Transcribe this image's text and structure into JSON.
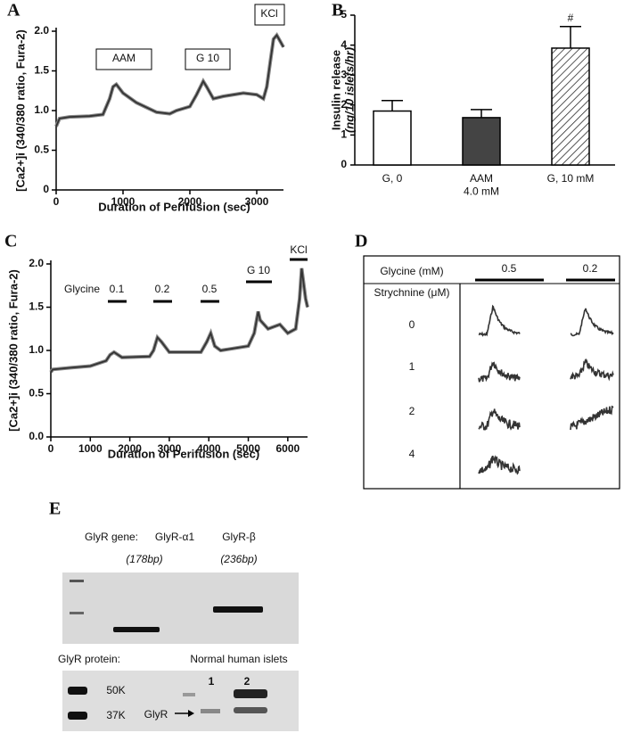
{
  "chart_data": [
    {
      "panel": "A",
      "type": "line",
      "color": "#333333",
      "x": [
        0,
        50,
        200,
        500,
        700,
        800,
        850,
        900,
        1000,
        1200,
        1500,
        1700,
        1800,
        2000,
        2100,
        2200,
        2250,
        2350,
        2500,
        2800,
        3000,
        3100,
        3150,
        3200,
        3250,
        3300,
        3400
      ],
      "values": [
        0.8,
        0.9,
        0.92,
        0.93,
        0.95,
        1.15,
        1.3,
        1.33,
        1.22,
        1.1,
        0.98,
        0.96,
        1.0,
        1.05,
        1.2,
        1.37,
        1.3,
        1.15,
        1.18,
        1.22,
        1.2,
        1.15,
        1.3,
        1.6,
        1.9,
        1.95,
        1.8
      ],
      "xlabel": "Duration of Perifusion (sec)",
      "ylabel": "[Ca2+]i (340/380 ratio, Fura-2)",
      "xlim": [
        0,
        3400
      ],
      "ylim": [
        0,
        2
      ],
      "xticks": [
        0,
        1000,
        2000,
        3000
      ],
      "yticks": [
        0,
        0.5,
        {
          "value": 1,
          "label": "1.0"
        },
        1.5,
        {
          "value": 2,
          "label": "2.0"
        }
      ],
      "annotations": [
        "AAM",
        "G 10",
        "KCl"
      ]
    },
    {
      "panel": "B",
      "type": "bar",
      "categories": [
        "G, 0",
        "AAM\n4.0 mM",
        "G, 10 mM"
      ],
      "values": [
        1.8,
        1.58,
        3.9
      ],
      "errors": [
        0.35,
        0.27,
        0.72
      ],
      "colors": [
        "#ffffff",
        "#444444",
        "#ffffff"
      ],
      "hatch": [
        false,
        false,
        true
      ],
      "ylabel": "Insulin release",
      "ylabel_unit": "(ng/10 islets/hr)",
      "ylim": [
        0,
        5
      ],
      "yticks": [
        0,
        1,
        2,
        3,
        4,
        5
      ],
      "annotations": [
        "#"
      ]
    },
    {
      "panel": "C",
      "type": "line",
      "color": "#333333",
      "x": [
        0,
        50,
        500,
        1000,
        1400,
        1500,
        1600,
        1800,
        2500,
        2600,
        2700,
        2800,
        3000,
        3800,
        3950,
        4050,
        4150,
        4300,
        5000,
        5150,
        5250,
        5300,
        5500,
        5800,
        6000,
        6200,
        6300,
        6350,
        6450,
        6500
      ],
      "values": [
        0.75,
        0.78,
        0.8,
        0.82,
        0.88,
        0.95,
        0.98,
        0.92,
        0.93,
        1.0,
        1.15,
        1.1,
        0.98,
        0.98,
        1.1,
        1.2,
        1.05,
        1.0,
        1.05,
        1.2,
        1.45,
        1.35,
        1.25,
        1.3,
        1.2,
        1.25,
        1.6,
        1.95,
        1.6,
        1.5
      ],
      "xlabel": "Duration of Perifusion (sec)",
      "ylabel": "[Ca2+]i (340/380 ratio, Fura-2)",
      "xlim": [
        0,
        6500
      ],
      "ylim": [
        0,
        2
      ],
      "xticks": [
        0,
        1000,
        2000,
        3000,
        4000,
        5000,
        6000
      ],
      "yticks": [
        {
          "value": 0,
          "label": "0.0"
        },
        0.5,
        {
          "value": 1,
          "label": "1.0"
        },
        1.5,
        {
          "value": 2,
          "label": "2.0"
        }
      ],
      "annotations": [
        "Glycine",
        "0.1",
        "0.2",
        "0.5",
        "G 10",
        "KCl"
      ]
    }
  ],
  "panel_d": {
    "label": "D",
    "glycine_label": "Glycine (mM)",
    "glycine_doses": [
      "0.5",
      "0.2"
    ],
    "strychnine_label": "Strychnine (μM)",
    "strychnine_doses": [
      "0",
      "1",
      "2",
      "4"
    ]
  },
  "panel_e": {
    "label": "E",
    "gene_label": "GlyR gene:",
    "alpha": "GlyR-α1",
    "alpha_size": "(178bp)",
    "beta": "GlyR-β",
    "beta_size": "(236bp)",
    "protein_label": "GlyR protein:",
    "islets_label": "Normal human islets",
    "lanes": [
      "1",
      "2"
    ],
    "markers": [
      "50K",
      "37K"
    ],
    "band_label": "GlyR"
  }
}
